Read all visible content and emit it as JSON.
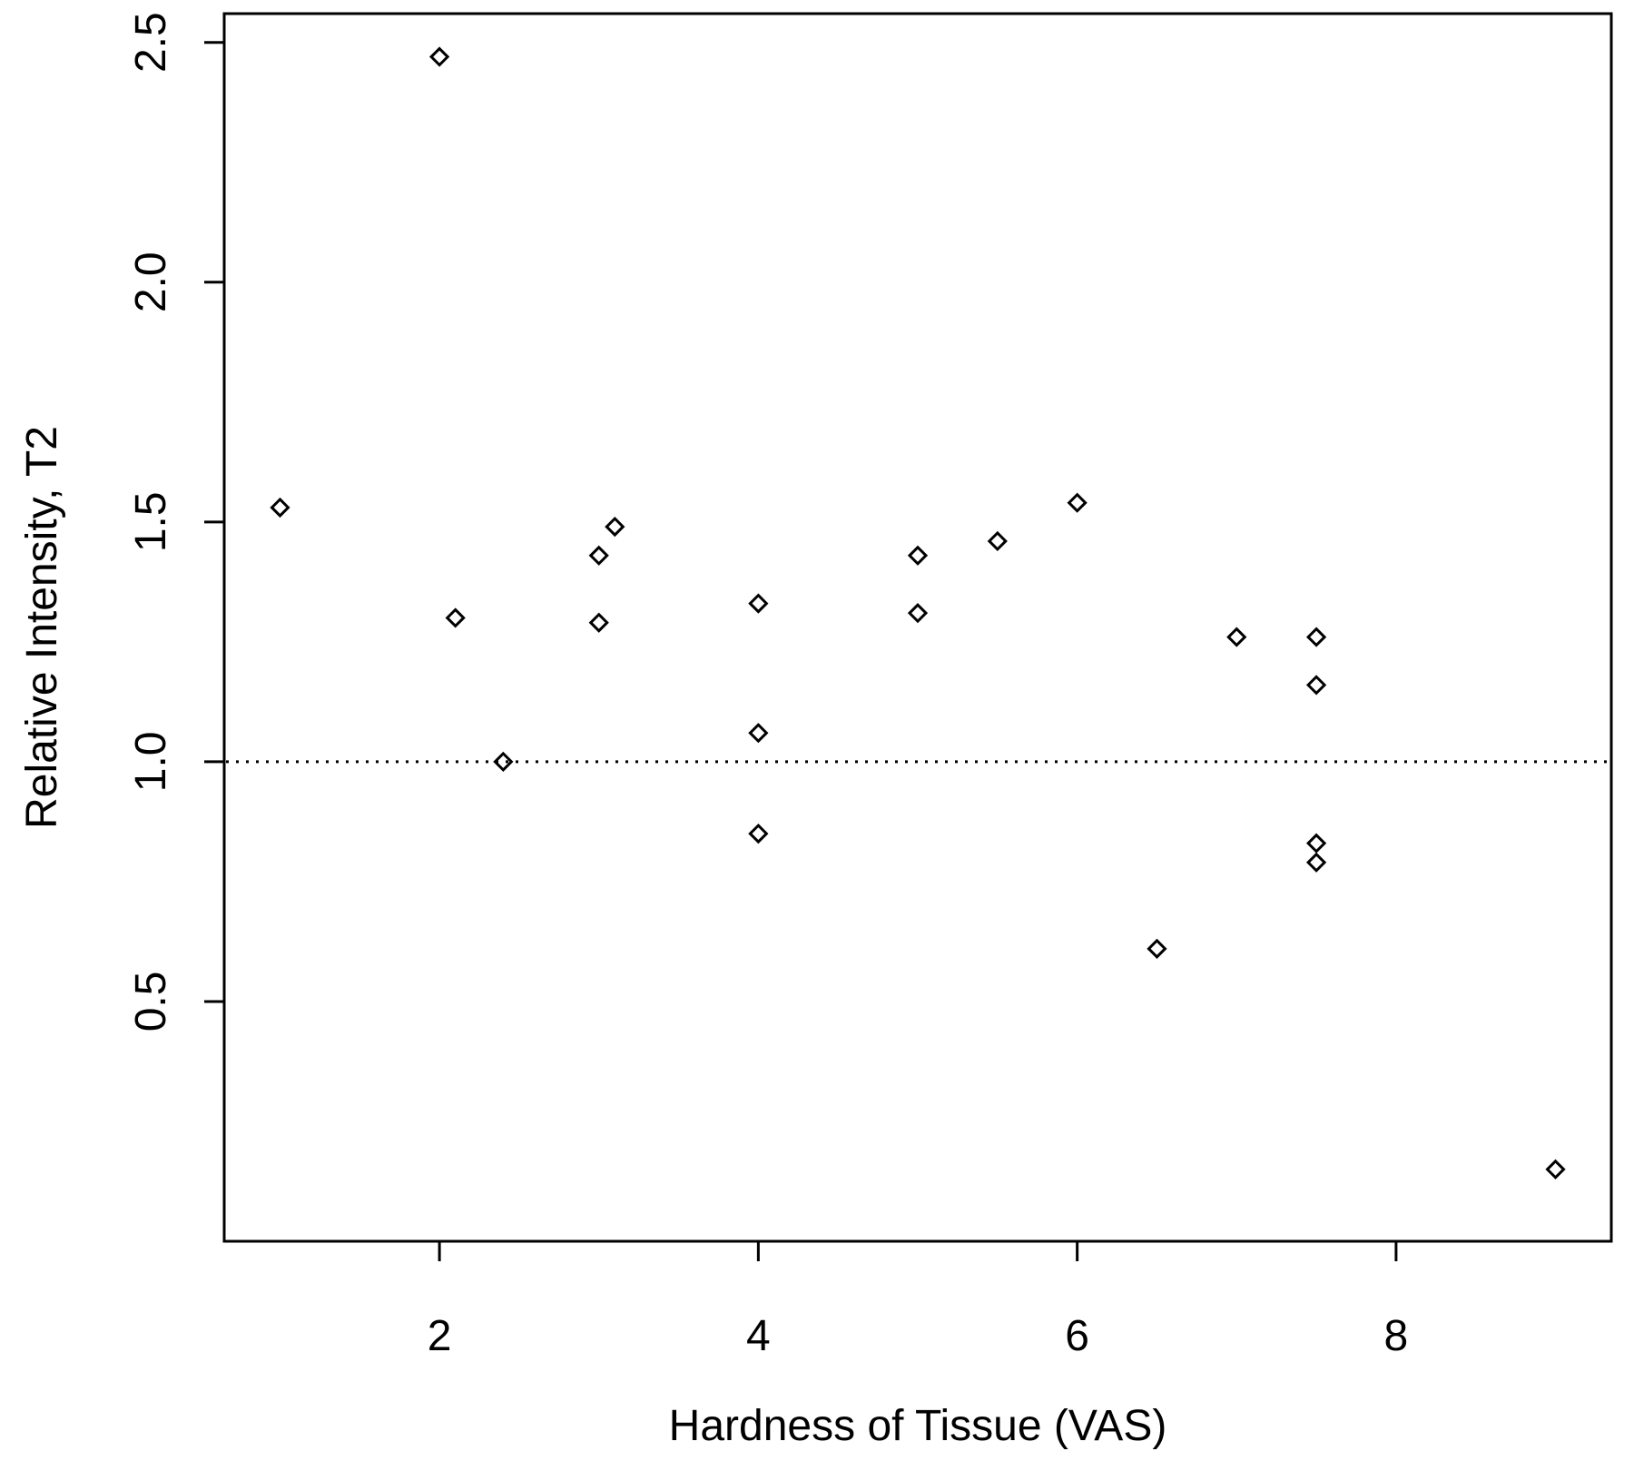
{
  "chart_data": {
    "type": "scatter",
    "title": "",
    "xlabel": "Hardness of Tissue (VAS)",
    "ylabel": "Relative Intensity, T2",
    "xlim": [
      0.65,
      9.35
    ],
    "ylim": [
      0.0,
      2.56
    ],
    "x_ticks": [
      2,
      4,
      6,
      8
    ],
    "x_tick_labels": [
      "2",
      "4",
      "6",
      "8"
    ],
    "y_ticks": [
      0.5,
      1.0,
      1.5,
      2.0,
      2.5
    ],
    "y_tick_labels": [
      "0.5",
      "1.0",
      "1.5",
      "2.0",
      "2.5"
    ],
    "grid": false,
    "marker": "diamond-open",
    "reference_line": {
      "y": 1.0,
      "style": "dotted"
    },
    "points": [
      {
        "x": 1.0,
        "y": 1.53
      },
      {
        "x": 2.0,
        "y": 2.47
      },
      {
        "x": 2.1,
        "y": 1.3
      },
      {
        "x": 2.4,
        "y": 1.0
      },
      {
        "x": 3.0,
        "y": 1.43
      },
      {
        "x": 3.1,
        "y": 1.49
      },
      {
        "x": 3.0,
        "y": 1.29
      },
      {
        "x": 4.0,
        "y": 1.33
      },
      {
        "x": 4.0,
        "y": 1.06
      },
      {
        "x": 4.0,
        "y": 0.85
      },
      {
        "x": 5.0,
        "y": 1.43
      },
      {
        "x": 5.0,
        "y": 1.31
      },
      {
        "x": 5.5,
        "y": 1.46
      },
      {
        "x": 6.0,
        "y": 1.54
      },
      {
        "x": 6.5,
        "y": 0.61
      },
      {
        "x": 7.0,
        "y": 1.26
      },
      {
        "x": 7.5,
        "y": 1.26
      },
      {
        "x": 7.5,
        "y": 1.16
      },
      {
        "x": 7.5,
        "y": 0.83
      },
      {
        "x": 7.5,
        "y": 0.79
      },
      {
        "x": 9.0,
        "y": 0.15
      }
    ]
  }
}
